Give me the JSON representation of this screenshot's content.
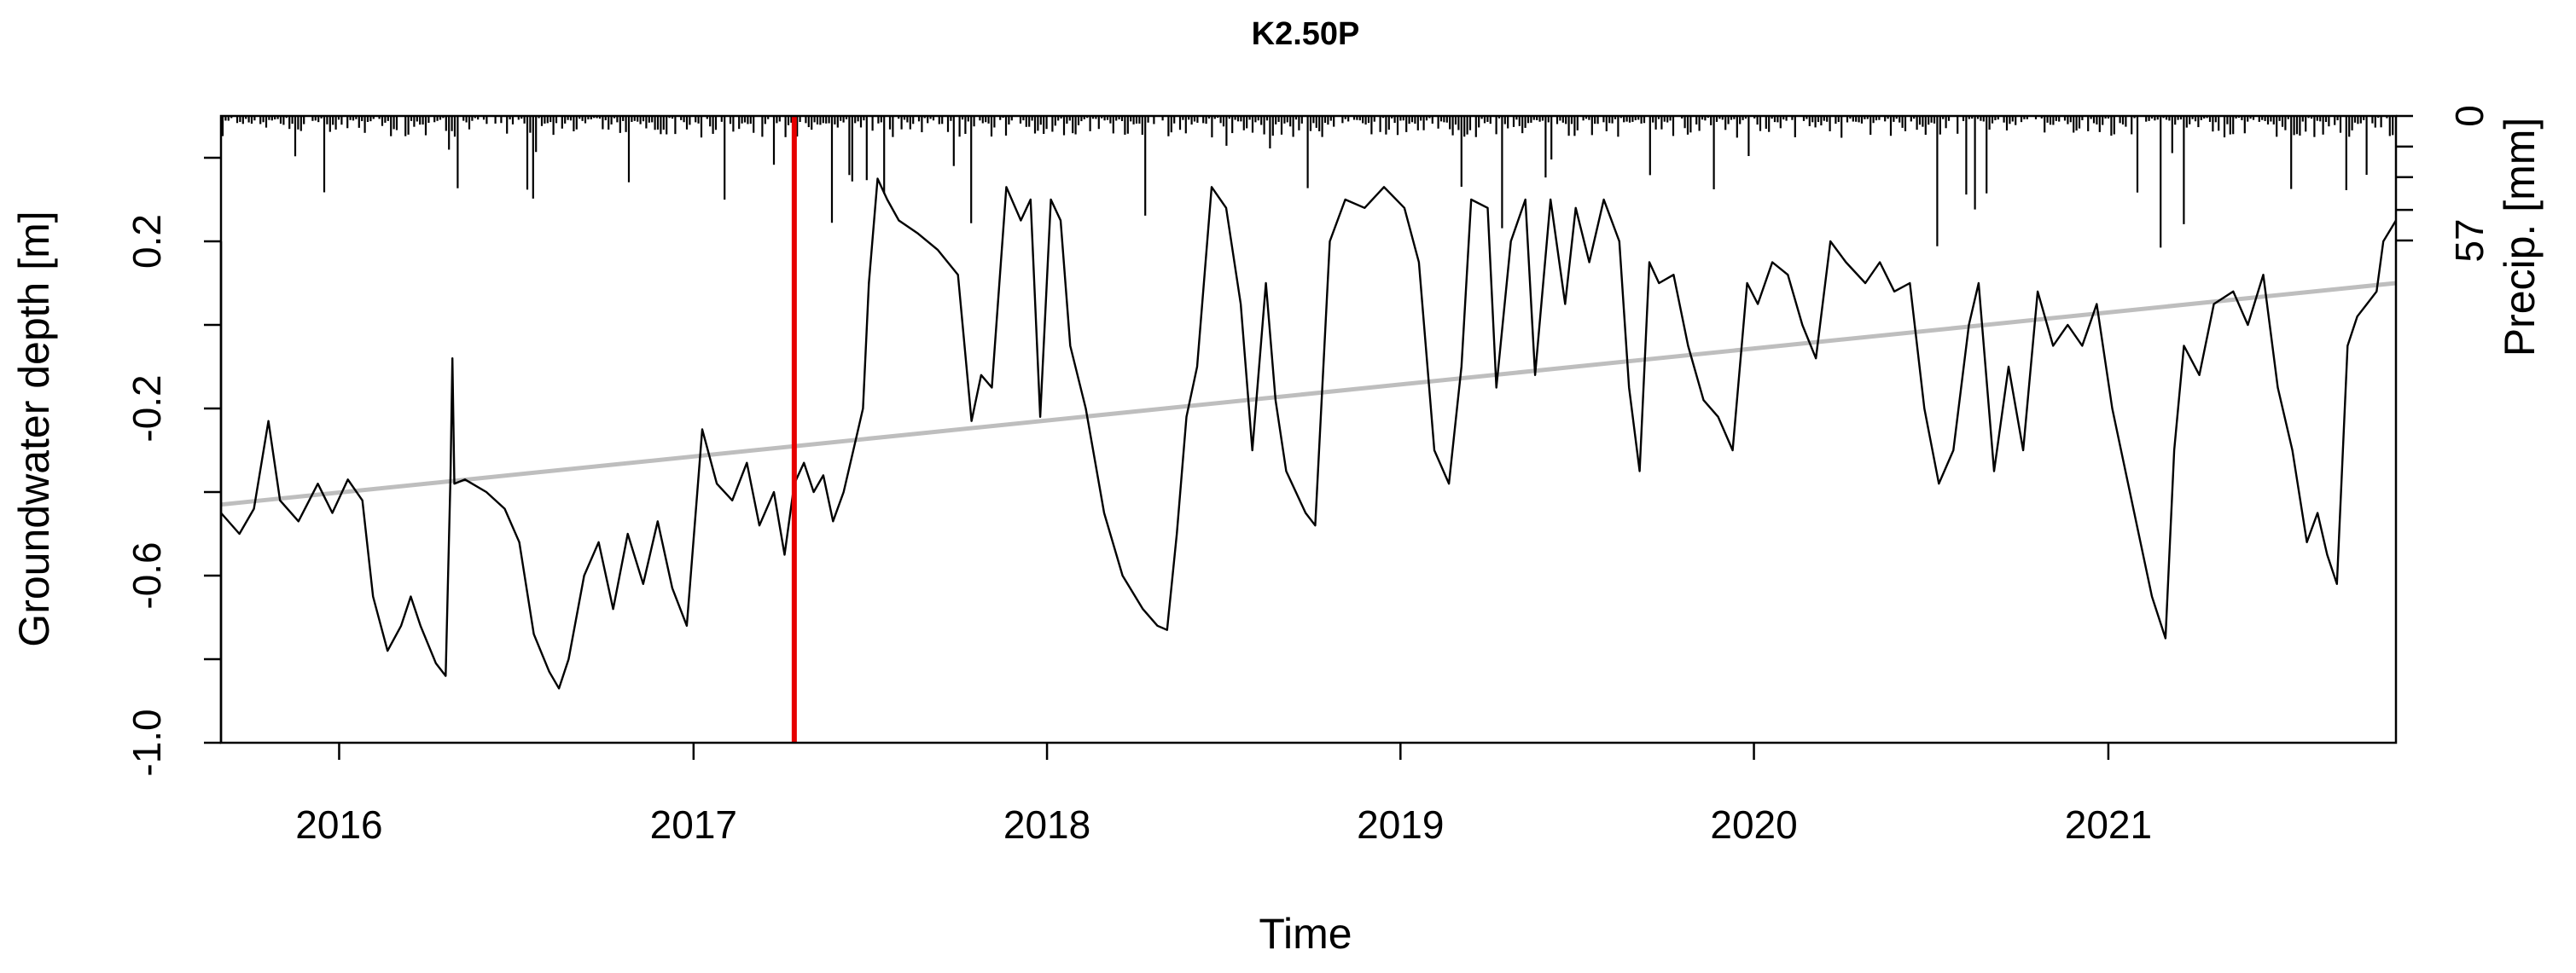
{
  "chart_data": {
    "type": "line",
    "title": "K2.50P",
    "xlabel": "Time",
    "ylabel": "Groundwater depth [m]",
    "ylabel_right": "Precip. [mm]",
    "x_range": [
      "2015-09-01",
      "2021-10-25"
    ],
    "y_range": [
      -1.0,
      0.5
    ],
    "x_ticks": [
      "2016",
      "2017",
      "2018",
      "2019",
      "2020",
      "2021"
    ],
    "y_ticks": [
      "-1.0",
      "-0.6",
      "-0.2",
      "0.2"
    ],
    "y_right_ticks": [
      "0",
      "57"
    ],
    "precip_range": [
      0,
      57
    ],
    "grid": false,
    "legend": "none",
    "colors": {
      "depth": "#000000",
      "trend": "#bebebe",
      "marker": "#e60000",
      "precip": "#000000"
    },
    "event_marker": {
      "date": "2017-04-15"
    },
    "trend": {
      "start": [
        "2015-09-01",
        -0.43
      ],
      "end": [
        "2021-10-25",
        0.1
      ]
    },
    "series": [
      {
        "points": [
          [
            "2015-09-01",
            -0.45
          ],
          [
            "2015-09-20",
            -0.5
          ],
          [
            "2015-10-05",
            -0.44
          ],
          [
            "2015-10-20",
            -0.23
          ],
          [
            "2015-11-01",
            -0.42
          ],
          [
            "2015-11-20",
            -0.47
          ],
          [
            "2015-12-10",
            -0.38
          ],
          [
            "2015-12-25",
            -0.45
          ],
          [
            "2016-01-10",
            -0.37
          ],
          [
            "2016-01-25",
            -0.42
          ],
          [
            "2016-02-05",
            -0.65
          ],
          [
            "2016-02-20",
            -0.78
          ],
          [
            "2016-03-05",
            -0.72
          ],
          [
            "2016-03-15",
            -0.65
          ],
          [
            "2016-03-25",
            -0.72
          ],
          [
            "2016-04-10",
            -0.81
          ],
          [
            "2016-04-20",
            -0.84
          ],
          [
            "2016-04-25",
            -0.36
          ],
          [
            "2016-04-27",
            -0.08
          ],
          [
            "2016-04-29",
            -0.38
          ],
          [
            "2016-05-10",
            -0.37
          ],
          [
            "2016-06-01",
            -0.4
          ],
          [
            "2016-06-20",
            -0.44
          ],
          [
            "2016-07-05",
            -0.52
          ],
          [
            "2016-07-20",
            -0.74
          ],
          [
            "2016-08-05",
            -0.83
          ],
          [
            "2016-08-15",
            -0.87
          ],
          [
            "2016-08-25",
            -0.8
          ],
          [
            "2016-09-10",
            -0.6
          ],
          [
            "2016-09-25",
            -0.52
          ],
          [
            "2016-10-10",
            -0.68
          ],
          [
            "2016-10-25",
            -0.5
          ],
          [
            "2016-11-10",
            -0.62
          ],
          [
            "2016-11-25",
            -0.47
          ],
          [
            "2016-12-10",
            -0.63
          ],
          [
            "2016-12-25",
            -0.72
          ],
          [
            "2017-01-10",
            -0.25
          ],
          [
            "2017-01-25",
            -0.38
          ],
          [
            "2017-02-10",
            -0.42
          ],
          [
            "2017-02-25",
            -0.33
          ],
          [
            "2017-03-10",
            -0.48
          ],
          [
            "2017-03-25",
            -0.4
          ],
          [
            "2017-04-05",
            -0.55
          ],
          [
            "2017-04-15",
            -0.38
          ],
          [
            "2017-04-25",
            -0.33
          ],
          [
            "2017-05-05",
            -0.4
          ],
          [
            "2017-05-15",
            -0.36
          ],
          [
            "2017-05-25",
            -0.47
          ],
          [
            "2017-06-05",
            -0.4
          ],
          [
            "2017-06-15",
            -0.3
          ],
          [
            "2017-06-25",
            -0.2
          ],
          [
            "2017-07-01",
            0.1
          ],
          [
            "2017-07-10",
            0.35
          ],
          [
            "2017-07-20",
            0.3
          ],
          [
            "2017-08-01",
            0.25
          ],
          [
            "2017-08-20",
            0.22
          ],
          [
            "2017-09-10",
            0.18
          ],
          [
            "2017-10-01",
            0.12
          ],
          [
            "2017-10-15",
            -0.23
          ],
          [
            "2017-10-25",
            -0.12
          ],
          [
            "2017-11-05",
            -0.15
          ],
          [
            "2017-11-20",
            0.33
          ],
          [
            "2017-12-05",
            0.25
          ],
          [
            "2017-12-15",
            0.3
          ],
          [
            "2017-12-25",
            -0.22
          ],
          [
            "2018-01-05",
            0.3
          ],
          [
            "2018-01-15",
            0.25
          ],
          [
            "2018-01-25",
            -0.05
          ],
          [
            "2018-02-10",
            -0.2
          ],
          [
            "2018-03-01",
            -0.45
          ],
          [
            "2018-03-20",
            -0.6
          ],
          [
            "2018-04-10",
            -0.68
          ],
          [
            "2018-04-25",
            -0.72
          ],
          [
            "2018-05-05",
            -0.73
          ],
          [
            "2018-05-15",
            -0.5
          ],
          [
            "2018-05-25",
            -0.22
          ],
          [
            "2018-06-05",
            -0.1
          ],
          [
            "2018-06-20",
            0.33
          ],
          [
            "2018-07-05",
            0.28
          ],
          [
            "2018-07-20",
            0.05
          ],
          [
            "2018-08-01",
            -0.3
          ],
          [
            "2018-08-15",
            0.1
          ],
          [
            "2018-08-25",
            -0.18
          ],
          [
            "2018-09-05",
            -0.35
          ],
          [
            "2018-09-25",
            -0.45
          ],
          [
            "2018-10-05",
            -0.48
          ],
          [
            "2018-10-20",
            0.2
          ],
          [
            "2018-11-05",
            0.3
          ],
          [
            "2018-11-25",
            0.28
          ],
          [
            "2018-12-15",
            0.33
          ],
          [
            "2019-01-05",
            0.28
          ],
          [
            "2019-01-20",
            0.15
          ],
          [
            "2019-02-05",
            -0.3
          ],
          [
            "2019-02-20",
            -0.38
          ],
          [
            "2019-03-05",
            -0.1
          ],
          [
            "2019-03-15",
            0.3
          ],
          [
            "2019-04-01",
            0.28
          ],
          [
            "2019-04-10",
            -0.15
          ],
          [
            "2019-04-25",
            0.2
          ],
          [
            "2019-05-10",
            0.3
          ],
          [
            "2019-05-20",
            -0.12
          ],
          [
            "2019-06-05",
            0.3
          ],
          [
            "2019-06-20",
            0.05
          ],
          [
            "2019-07-01",
            0.28
          ],
          [
            "2019-07-15",
            0.15
          ],
          [
            "2019-07-30",
            0.3
          ],
          [
            "2019-08-15",
            0.2
          ],
          [
            "2019-08-25",
            -0.15
          ],
          [
            "2019-09-05",
            -0.35
          ],
          [
            "2019-09-15",
            0.15
          ],
          [
            "2019-09-25",
            0.1
          ],
          [
            "2019-10-10",
            0.12
          ],
          [
            "2019-10-25",
            -0.05
          ],
          [
            "2019-11-10",
            -0.18
          ],
          [
            "2019-11-25",
            -0.22
          ],
          [
            "2019-12-10",
            -0.3
          ],
          [
            "2019-12-25",
            0.1
          ],
          [
            "2020-01-05",
            0.05
          ],
          [
            "2020-01-20",
            0.15
          ],
          [
            "2020-02-05",
            0.12
          ],
          [
            "2020-02-20",
            0.0
          ],
          [
            "2020-03-05",
            -0.08
          ],
          [
            "2020-03-20",
            0.2
          ],
          [
            "2020-04-05",
            0.15
          ],
          [
            "2020-04-25",
            0.1
          ],
          [
            "2020-05-10",
            0.15
          ],
          [
            "2020-05-25",
            0.08
          ],
          [
            "2020-06-10",
            0.1
          ],
          [
            "2020-06-25",
            -0.2
          ],
          [
            "2020-07-10",
            -0.38
          ],
          [
            "2020-07-25",
            -0.3
          ],
          [
            "2020-08-10",
            0.0
          ],
          [
            "2020-08-20",
            0.1
          ],
          [
            "2020-09-05",
            -0.35
          ],
          [
            "2020-09-20",
            -0.1
          ],
          [
            "2020-10-05",
            -0.3
          ],
          [
            "2020-10-20",
            0.08
          ],
          [
            "2020-11-05",
            -0.05
          ],
          [
            "2020-11-20",
            0.0
          ],
          [
            "2020-12-05",
            -0.05
          ],
          [
            "2020-12-20",
            0.05
          ],
          [
            "2021-01-05",
            -0.2
          ],
          [
            "2021-01-25",
            -0.42
          ],
          [
            "2021-02-15",
            -0.65
          ],
          [
            "2021-03-01",
            -0.75
          ],
          [
            "2021-03-10",
            -0.3
          ],
          [
            "2021-03-20",
            -0.05
          ],
          [
            "2021-04-05",
            -0.12
          ],
          [
            "2021-04-20",
            0.05
          ],
          [
            "2021-05-10",
            0.08
          ],
          [
            "2021-05-25",
            0.0
          ],
          [
            "2021-06-10",
            0.12
          ],
          [
            "2021-06-25",
            -0.15
          ],
          [
            "2021-07-10",
            -0.3
          ],
          [
            "2021-07-25",
            -0.52
          ],
          [
            "2021-08-05",
            -0.45
          ],
          [
            "2021-08-15",
            -0.55
          ],
          [
            "2021-08-25",
            -0.62
          ],
          [
            "2021-09-05",
            -0.05
          ],
          [
            "2021-09-15",
            0.02
          ],
          [
            "2021-09-25",
            0.05
          ],
          [
            "2021-10-05",
            0.08
          ],
          [
            "2021-10-12",
            0.2
          ],
          [
            "2021-10-25",
            0.25
          ]
        ]
      }
    ]
  }
}
